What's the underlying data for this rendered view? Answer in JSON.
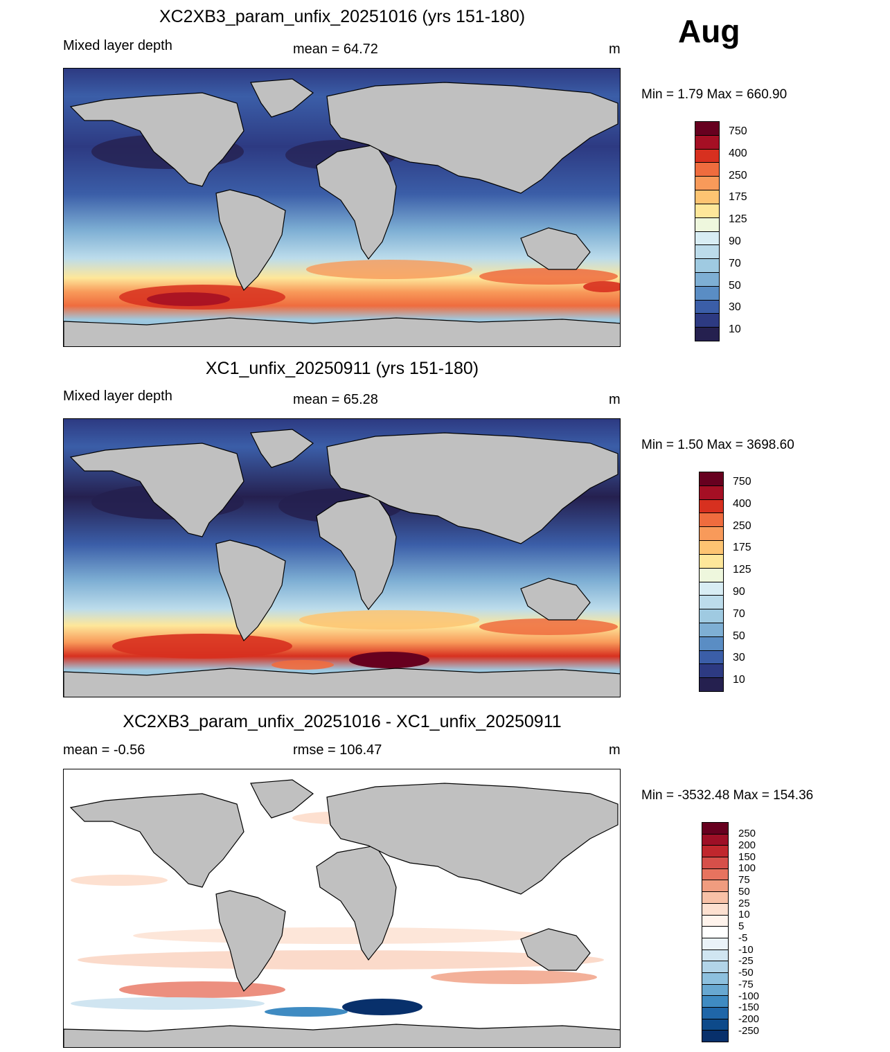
{
  "month": "Aug",
  "panels": [
    {
      "title": "XC2XB3_param_unfix_20251016 (yrs 151-180)",
      "left_label": "Mixed layer depth",
      "center_label": "mean =  64.72",
      "unit": "m",
      "minmax": "Min =    1.79 Max = 660.90",
      "colorbar": {
        "labels": [
          "750",
          "400",
          "250",
          "175",
          "125",
          "90",
          "70",
          "50",
          "30",
          "10"
        ],
        "colors": [
          "#67001f",
          "#a50f24",
          "#d7301f",
          "#ef6c3e",
          "#f89a5a",
          "#fdc472",
          "#fee79a",
          "#eef7dd",
          "#d8edf4",
          "#bcdceb",
          "#9fcae1",
          "#7eafd4",
          "#5a8dc4",
          "#3b5ea8",
          "#2d3a82",
          "#25204f"
        ]
      }
    },
    {
      "title": "XC1_unfix_20250911 (yrs 151-180)",
      "left_label": "Mixed layer depth",
      "center_label": "mean =  65.28",
      "unit": "m",
      "minmax": "Min =    1.50 Max = 3698.60",
      "colorbar": {
        "labels": [
          "750",
          "400",
          "250",
          "175",
          "125",
          "90",
          "70",
          "50",
          "30",
          "10"
        ],
        "colors": [
          "#67001f",
          "#a50f24",
          "#d7301f",
          "#ef6c3e",
          "#f89a5a",
          "#fdc472",
          "#fee79a",
          "#eef7dd",
          "#d8edf4",
          "#bcdceb",
          "#9fcae1",
          "#7eafd4",
          "#5a8dc4",
          "#3b5ea8",
          "#2d3a82",
          "#25204f"
        ]
      }
    },
    {
      "title": "XC2XB3_param_unfix_20251016 - XC1_unfix_20250911",
      "left_label": "mean =  -0.56",
      "center_label": "rmse = 106.47",
      "unit": "m",
      "minmax": "Min = -3532.48 Max = 154.36",
      "colorbar": {
        "labels": [
          "250",
          "200",
          "150",
          "100",
          "75",
          "50",
          "25",
          "10",
          "5",
          "-5",
          "-10",
          "-25",
          "-50",
          "-75",
          "-100",
          "-150",
          "-200",
          "-250"
        ],
        "colors": [
          "#67001f",
          "#9e0f26",
          "#c0272d",
          "#d6504a",
          "#e7735f",
          "#f09c7f",
          "#f8c1a7",
          "#fde0d0",
          "#fff3ec",
          "#ffffff",
          "#eaf2f8",
          "#d0e5f1",
          "#b2d4e8",
          "#8dc0de",
          "#68a8d1",
          "#3f8bc2",
          "#1f66a8",
          "#0d4a8a",
          "#08306b"
        ]
      }
    }
  ]
}
